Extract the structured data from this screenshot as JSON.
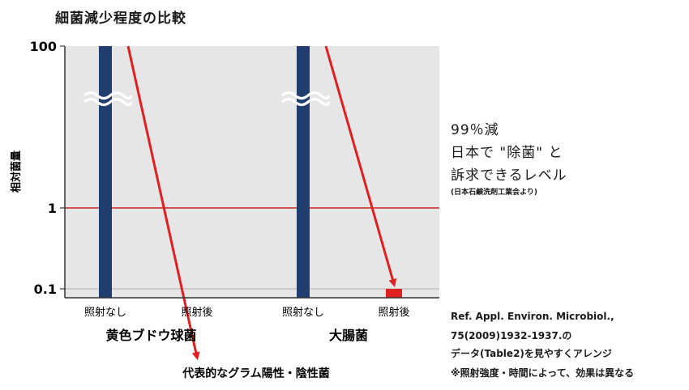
{
  "chart_data": {
    "type": "bar",
    "title": "細菌減少程度の比較",
    "ylabel": "相対菌量",
    "yscale": "log",
    "ylim": [
      0.01,
      100
    ],
    "ytick_labels": [
      "100",
      "1",
      "0.1"
    ],
    "y_ticks": [
      100,
      1,
      0.1
    ],
    "reference_line": {
      "y": 1,
      "color": "#cc2222"
    },
    "xlabel": "代表的なグラム陽性・陰性菌",
    "groups": [
      {
        "name": "黄色ブドウ球菌",
        "bars": [
          {
            "label": "照射なし",
            "value": 100,
            "color": "#1f3d6e",
            "broken": true
          },
          {
            "label": "照射後",
            "value": 0.0125,
            "color": "#e02020"
          }
        ]
      },
      {
        "name": "大腸菌",
        "bars": [
          {
            "label": "照射なし",
            "value": 100,
            "color": "#1f3d6e",
            "broken": true
          },
          {
            "label": "照射後",
            "value": 0.1,
            "color": "#e02020"
          }
        ]
      }
    ]
  },
  "annotation": {
    "line1": "99％減",
    "line2": "日本で \"除菌\" と",
    "line3": "訴求できるレベル",
    "source": "(日本石鹸洗剤工業会より)"
  },
  "reference": {
    "line1": "Ref. Appl. Environ. Microbiol.,",
    "line2": "75(2009)1932-1937.の",
    "line3": "データ(Table2)を見やすくアレンジ",
    "line4": "※照射強度・時間によって、効果は異なる"
  }
}
